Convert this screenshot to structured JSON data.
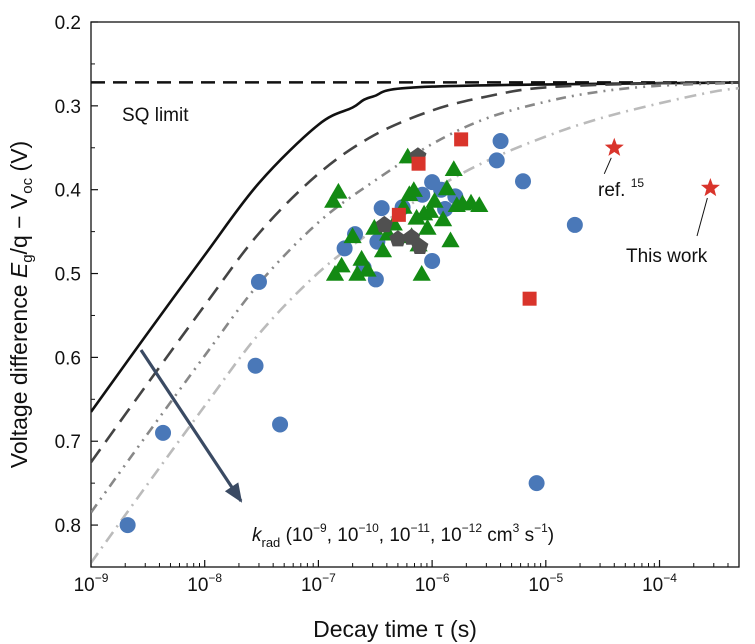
{
  "chart_data": {
    "type": "scatter",
    "x_scale": "log",
    "xlim": [
      1e-09,
      0.0005
    ],
    "ylim": [
      0.2,
      0.85
    ],
    "y_inverted": true,
    "xlabel": "Decay time τ (s)",
    "ylabel": {
      "prefix": "Voltage difference ",
      "E": "E",
      "g": "g",
      "slash_q": "/q",
      "minus_V": " − V",
      "oc": "oc",
      "suffix": " (V)"
    },
    "x_ticks": [
      {
        "value": 1e-09,
        "label": "10",
        "exp": "−9"
      },
      {
        "value": 1e-08,
        "label": "10",
        "exp": "−8"
      },
      {
        "value": 1e-07,
        "label": "10",
        "exp": "−7"
      },
      {
        "value": 1e-06,
        "label": "10",
        "exp": "−6"
      },
      {
        "value": 1e-05,
        "label": "10",
        "exp": "−5"
      },
      {
        "value": 0.0001,
        "label": "10",
        "exp": "−4"
      }
    ],
    "y_ticks": [
      {
        "value": 0.2,
        "label": "0.2"
      },
      {
        "value": 0.3,
        "label": "0.3"
      },
      {
        "value": 0.4,
        "label": "0.4"
      },
      {
        "value": 0.5,
        "label": "0.5"
      },
      {
        "value": 0.6,
        "label": "0.6"
      },
      {
        "value": 0.7,
        "label": "0.7"
      },
      {
        "value": 0.8,
        "label": "0.8"
      }
    ],
    "sq_limit": {
      "value": 0.272,
      "label": "SQ limit"
    },
    "curves": [
      {
        "name": "k_rad 1e-9",
        "style": "solid",
        "color": "#111111",
        "points": [
          [
            1e-09,
            0.665
          ],
          [
            3e-09,
            0.575
          ],
          [
            1e-08,
            0.478
          ],
          [
            3e-08,
            0.392
          ],
          [
            1e-07,
            0.3225
          ],
          [
            2e-07,
            0.302
          ],
          [
            3e-07,
            0.289
          ],
          [
            1e-06,
            0.277
          ],
          [
            0.0005,
            0.272
          ]
        ]
      },
      {
        "name": "k_rad 1e-10",
        "style": "dash",
        "color": "#444444",
        "points": [
          [
            1e-09,
            0.725
          ],
          [
            3e-09,
            0.635
          ],
          [
            1e-08,
            0.538
          ],
          [
            3e-08,
            0.452
          ],
          [
            1e-07,
            0.381
          ],
          [
            3e-07,
            0.336
          ],
          [
            1e-06,
            0.3055
          ],
          [
            3e-06,
            0.289
          ],
          [
            1e-05,
            0.278
          ],
          [
            0.0001,
            0.273
          ],
          [
            0.0005,
            0.272
          ]
        ]
      },
      {
        "name": "k_rad 1e-11",
        "style": "dash-dot-dot",
        "color": "#888888",
        "points": [
          [
            1e-09,
            0.785
          ],
          [
            3e-09,
            0.695
          ],
          [
            1e-08,
            0.598
          ],
          [
            3e-08,
            0.512
          ],
          [
            1e-07,
            0.439
          ],
          [
            3e-07,
            0.391
          ],
          [
            1e-06,
            0.3455
          ],
          [
            3e-06,
            0.315
          ],
          [
            1e-05,
            0.295
          ],
          [
            3e-05,
            0.283
          ],
          [
            0.0001,
            0.276
          ],
          [
            0.0005,
            0.2725
          ]
        ]
      },
      {
        "name": "k_rad 1e-12",
        "style": "dash-dot",
        "color": "#bbbbbb",
        "points": [
          [
            1e-09,
            0.845
          ],
          [
            3e-09,
            0.755
          ],
          [
            1e-08,
            0.658
          ],
          [
            3e-08,
            0.572
          ],
          [
            1e-07,
            0.499
          ],
          [
            3e-07,
            0.449
          ],
          [
            1e-06,
            0.401
          ],
          [
            3e-06,
            0.366
          ],
          [
            1e-05,
            0.3365
          ],
          [
            3e-05,
            0.315
          ],
          [
            0.0001,
            0.297
          ],
          [
            0.0003,
            0.283
          ],
          [
            0.0005,
            0.279
          ]
        ]
      }
    ],
    "series": [
      {
        "name": "circles",
        "marker": "circle",
        "color": "#4a78b8",
        "points": [
          [
            2.1e-09,
            0.8
          ],
          [
            4.3e-09,
            0.69
          ],
          [
            2.8e-08,
            0.61
          ],
          [
            3e-08,
            0.51
          ],
          [
            4.6e-08,
            0.68
          ],
          [
            1.7e-07,
            0.47
          ],
          [
            2.1e-07,
            0.453
          ],
          [
            2.5e-07,
            0.493
          ],
          [
            3.2e-07,
            0.507
          ],
          [
            3.3e-07,
            0.462
          ],
          [
            3.6e-07,
            0.422
          ],
          [
            5.5e-07,
            0.421
          ],
          [
            8.2e-07,
            0.406
          ],
          [
            1e-06,
            0.485
          ],
          [
            1e-06,
            0.391
          ],
          [
            1.2e-06,
            0.4
          ],
          [
            1.6e-06,
            0.408
          ],
          [
            1.3e-06,
            0.423
          ],
          [
            3.7e-06,
            0.365
          ],
          [
            4e-06,
            0.342
          ],
          [
            6.3e-06,
            0.39
          ],
          [
            8.3e-06,
            0.75
          ],
          [
            1.8e-05,
            0.442
          ]
        ]
      },
      {
        "name": "triangles",
        "marker": "triangle",
        "color": "#138a13",
        "points": [
          [
            1.35e-07,
            0.413
          ],
          [
            1.5e-07,
            0.402
          ],
          [
            1.4e-07,
            0.5
          ],
          [
            1.6e-07,
            0.49
          ],
          [
            2e-07,
            0.455
          ],
          [
            2.2e-07,
            0.5
          ],
          [
            2.7e-07,
            0.495
          ],
          [
            2.4e-07,
            0.482
          ],
          [
            3.1e-07,
            0.445
          ],
          [
            3.7e-07,
            0.472
          ],
          [
            4.1e-07,
            0.452
          ],
          [
            4.6e-07,
            0.44
          ],
          [
            5.6e-07,
            0.42
          ],
          [
            6.1e-07,
            0.36
          ],
          [
            6.3e-07,
            0.405
          ],
          [
            6.9e-07,
            0.4
          ],
          [
            7.3e-07,
            0.433
          ],
          [
            6.6e-07,
            0.455
          ],
          [
            8.1e-07,
            0.5
          ],
          [
            8.5e-07,
            0.428
          ],
          [
            9.1e-07,
            0.445
          ],
          [
            9.6e-07,
            0.425
          ],
          [
            1.05e-06,
            0.413
          ],
          [
            1.25e-06,
            0.435
          ],
          [
            1.45e-06,
            0.46
          ],
          [
            1.65e-06,
            0.418
          ],
          [
            1.85e-06,
            0.416
          ],
          [
            2.2e-06,
            0.415
          ],
          [
            2.6e-06,
            0.418
          ],
          [
            1.55e-06,
            0.375
          ],
          [
            1.35e-06,
            0.398
          ],
          [
            7.6e-07,
            0.465
          ]
        ]
      },
      {
        "name": "pentagons",
        "marker": "pentagon",
        "color": "#505050",
        "points": [
          [
            3.8e-07,
            0.442
          ],
          [
            5e-07,
            0.459
          ],
          [
            6.6e-07,
            0.457
          ],
          [
            7.5e-07,
            0.36
          ],
          [
            7.8e-07,
            0.468
          ]
        ]
      },
      {
        "name": "squares",
        "marker": "square",
        "color": "#d9342b",
        "points": [
          [
            5.1e-07,
            0.43
          ],
          [
            7.6e-07,
            0.369
          ],
          [
            1.8e-06,
            0.34
          ],
          [
            7.2e-06,
            0.53
          ]
        ]
      },
      {
        "name": "stars",
        "marker": "star",
        "color": "#d9342b",
        "points": [
          [
            4e-05,
            0.35
          ],
          [
            0.00028,
            0.398
          ]
        ]
      }
    ],
    "annotations": {
      "ref": {
        "text": "ref. ",
        "sup": "15"
      },
      "this_work": {
        "text": "This work"
      },
      "krad": {
        "k": "k",
        "sub": "rad",
        "parts": [
          {
            "t": " (10",
            "sup": "−9"
          },
          {
            "t": ", 10",
            "sup": "−10"
          },
          {
            "t": ", 10",
            "sup": "−11"
          },
          {
            "t": ", 10",
            "sup": "−12"
          },
          {
            "t": " cm",
            "sup": "3"
          },
          {
            "t": " s",
            "sup": "−1"
          },
          {
            "t": ")",
            "sup": ""
          }
        ]
      }
    }
  }
}
